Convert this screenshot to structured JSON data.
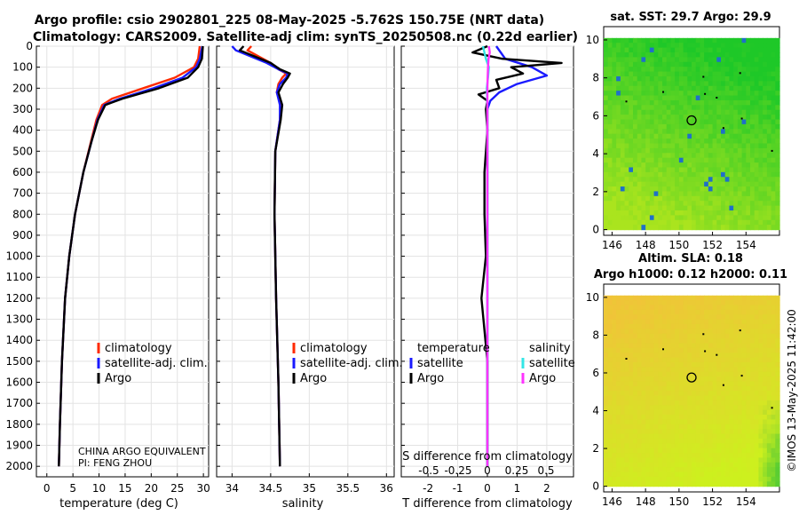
{
  "header": {
    "line1": "Argo profile: csio 2902801_225 08-May-2025 -5.762S 150.75E (NRT data)",
    "line2": "Climatology: CARS2009. Satellite-adj clim: synTS_20250508.nc (0.22d earlier)"
  },
  "watermark": "©IMOS 13-May-2025 11:42:00",
  "colors": {
    "climatology": "#ff2a00",
    "satellite_adj": "#1a1aff",
    "argo": "#000000",
    "temp_satellite": "#1a1aff",
    "sal_satellite": "#33e6e6",
    "sal_argo": "#ff33ff",
    "sst_green": "#22c832",
    "sla_yellow": "#d8f020"
  },
  "chart_data": [
    {
      "id": "temperature",
      "type": "line",
      "xlabel": "temperature (deg C)",
      "xlim": [
        -2,
        31
      ],
      "xticks": [
        0,
        5,
        10,
        15,
        20,
        25,
        30
      ],
      "ylim": [
        0,
        2050
      ],
      "yticks": [
        0,
        100,
        200,
        300,
        400,
        500,
        600,
        700,
        800,
        900,
        1000,
        1100,
        1200,
        1300,
        1400,
        1500,
        1600,
        1700,
        1800,
        1900,
        2000
      ],
      "legend": [
        "climatology",
        "satellite-adj. clim.",
        "Argo"
      ],
      "annotation": [
        "CHINA ARGO EQUIVALENT",
        "PI: FENG ZHOU"
      ],
      "series": [
        {
          "name": "climatology",
          "color": "#ff2a00",
          "depth": [
            0,
            60,
            100,
            150,
            200,
            250,
            280,
            350,
            450,
            600,
            800,
            1000,
            1200,
            1500,
            1800,
            2000
          ],
          "values": [
            29.3,
            29.0,
            28.2,
            24.5,
            18.5,
            12.5,
            10.6,
            9.5,
            8.5,
            7.0,
            5.4,
            4.3,
            3.5,
            2.9,
            2.5,
            2.3
          ]
        },
        {
          "name": "satellite-adj. clim.",
          "color": "#1a1aff",
          "depth": [
            0,
            60,
            100,
            150,
            200,
            250,
            280,
            350,
            450,
            600,
            800,
            1000,
            1200,
            1500,
            1800,
            2000
          ],
          "values": [
            29.8,
            29.3,
            28.6,
            26.0,
            20.5,
            14.0,
            11.0,
            9.7,
            8.6,
            7.0,
            5.4,
            4.3,
            3.5,
            2.9,
            2.5,
            2.3
          ]
        },
        {
          "name": "Argo",
          "color": "#000000",
          "depth": [
            0,
            60,
            100,
            150,
            200,
            250,
            280,
            350,
            450,
            600,
            800,
            1000,
            1200,
            1500,
            1800,
            2000
          ],
          "values": [
            29.9,
            29.7,
            29.0,
            27.0,
            21.5,
            14.5,
            11.2,
            9.8,
            8.6,
            7.0,
            5.4,
            4.3,
            3.5,
            2.9,
            2.5,
            2.3
          ]
        }
      ]
    },
    {
      "id": "salinity",
      "type": "line",
      "xlabel": "salinity",
      "xlim": [
        33.8,
        36.1
      ],
      "xticks": [
        34,
        34.5,
        35,
        35.5,
        36
      ],
      "ylim": [
        0,
        2050
      ],
      "legend": [
        "climatology",
        "satellite-adj. clim.",
        "Argo"
      ],
      "series": [
        {
          "name": "climatology",
          "color": "#ff2a00",
          "depth": [
            0,
            20,
            50,
            80,
            110,
            130,
            150,
            180,
            220,
            280,
            350,
            500,
            800,
            1200,
            1600,
            2000
          ],
          "values": [
            34.25,
            34.2,
            34.35,
            34.5,
            34.6,
            34.7,
            34.65,
            34.6,
            34.58,
            34.63,
            34.62,
            34.56,
            34.55,
            34.57,
            34.6,
            34.62
          ]
        },
        {
          "name": "satellite-adj. clim.",
          "color": "#1a1aff",
          "depth": [
            0,
            20,
            50,
            80,
            110,
            130,
            150,
            180,
            220,
            280,
            350,
            500,
            800,
            1200,
            1600,
            2000
          ],
          "values": [
            34.0,
            34.05,
            34.25,
            34.45,
            34.6,
            34.72,
            34.7,
            34.62,
            34.58,
            34.62,
            34.62,
            34.56,
            34.55,
            34.57,
            34.6,
            34.62
          ]
        },
        {
          "name": "Argo",
          "color": "#000000",
          "depth": [
            0,
            20,
            50,
            80,
            110,
            130,
            150,
            180,
            220,
            280,
            350,
            500,
            800,
            1200,
            1600,
            2000
          ],
          "values": [
            34.15,
            34.1,
            34.3,
            34.5,
            34.62,
            34.75,
            34.72,
            34.66,
            34.6,
            34.65,
            34.63,
            34.56,
            34.55,
            34.57,
            34.6,
            34.62
          ]
        }
      ]
    },
    {
      "id": "difference",
      "type": "line",
      "xlabel": "T difference from climatology",
      "xlabel_top": "S difference from climatology",
      "xlim": [
        -2.9,
        2.9
      ],
      "xticks": [
        -2,
        -1,
        0,
        1,
        2
      ],
      "top_ticks": [
        "-0.5",
        "-0.25",
        "0",
        "0.25",
        "0.5"
      ],
      "legend_temperature": {
        "title": "temperature",
        "items": [
          "satellite",
          "Argo"
        ]
      },
      "legend_salinity": {
        "title": "salinity",
        "items": [
          "satellite",
          "Argo"
        ]
      },
      "series": [
        {
          "name": "temperature satellite",
          "color": "#1a1aff",
          "depth": [
            0,
            60,
            100,
            140,
            180,
            220,
            260,
            300,
            400,
            600,
            1000,
            1500,
            2000
          ],
          "values": [
            0.3,
            0.6,
            1.5,
            2.0,
            1.0,
            0.4,
            0.1,
            0.0,
            0.0,
            0.0,
            0.0,
            0.0,
            0.0
          ]
        },
        {
          "name": "temperature Argo",
          "color": "#000000",
          "depth": [
            0,
            30,
            60,
            80,
            100,
            130,
            160,
            200,
            230,
            260,
            300,
            400,
            600,
            800,
            1000,
            1200,
            1500,
            1800,
            2000
          ],
          "values": [
            0.0,
            -0.5,
            0.5,
            2.5,
            0.8,
            1.2,
            0.3,
            0.4,
            -0.3,
            0.0,
            -0.05,
            0.0,
            -0.1,
            -0.1,
            -0.05,
            -0.2,
            0.0,
            0.0,
            0.0
          ]
        },
        {
          "name": "salinity satellite",
          "color": "#33e6e6",
          "depth": [
            0,
            30,
            60,
            100,
            150,
            200,
            250,
            300,
            400,
            800,
            1200,
            1600,
            2000
          ],
          "values": [
            -0.15,
            -0.1,
            -0.05,
            0.05,
            0.02,
            -0.02,
            -0.01,
            0.0,
            0.0,
            0.0,
            0.0,
            0.0,
            0.0
          ]
        },
        {
          "name": "salinity Argo",
          "color": "#ff33ff",
          "depth": [
            0,
            30,
            60,
            100,
            150,
            200,
            250,
            300,
            400,
            800,
            1200,
            1600,
            2000
          ],
          "values": [
            0.05,
            0.08,
            0.04,
            0.02,
            0.01,
            0.0,
            0.0,
            0.0,
            0.0,
            0.0,
            0.0,
            0.0,
            0.0
          ]
        }
      ]
    },
    {
      "id": "sst_map",
      "type": "heatmap",
      "title": "sat. SST: 29.7 Argo: 29.9",
      "xticks": [
        146,
        148,
        150,
        152,
        154
      ],
      "yticks": [
        0,
        2,
        4,
        6,
        8,
        10
      ],
      "xlim": [
        145.5,
        156
      ],
      "ylim": [
        -0.3,
        10.7
      ],
      "marker": {
        "lon": 150.75,
        "lat": 5.76
      }
    },
    {
      "id": "sla_map",
      "type": "heatmap",
      "title": "Altim. SLA: 0.18",
      "subtitle": "Argo h1000: 0.12 h2000: 0.11",
      "xticks": [
        146,
        148,
        150,
        152,
        154
      ],
      "yticks": [
        0,
        2,
        4,
        6,
        8,
        10
      ],
      "xlim": [
        145.5,
        156
      ],
      "ylim": [
        -0.3,
        10.7
      ],
      "marker": {
        "lon": 150.75,
        "lat": 5.76
      }
    }
  ]
}
